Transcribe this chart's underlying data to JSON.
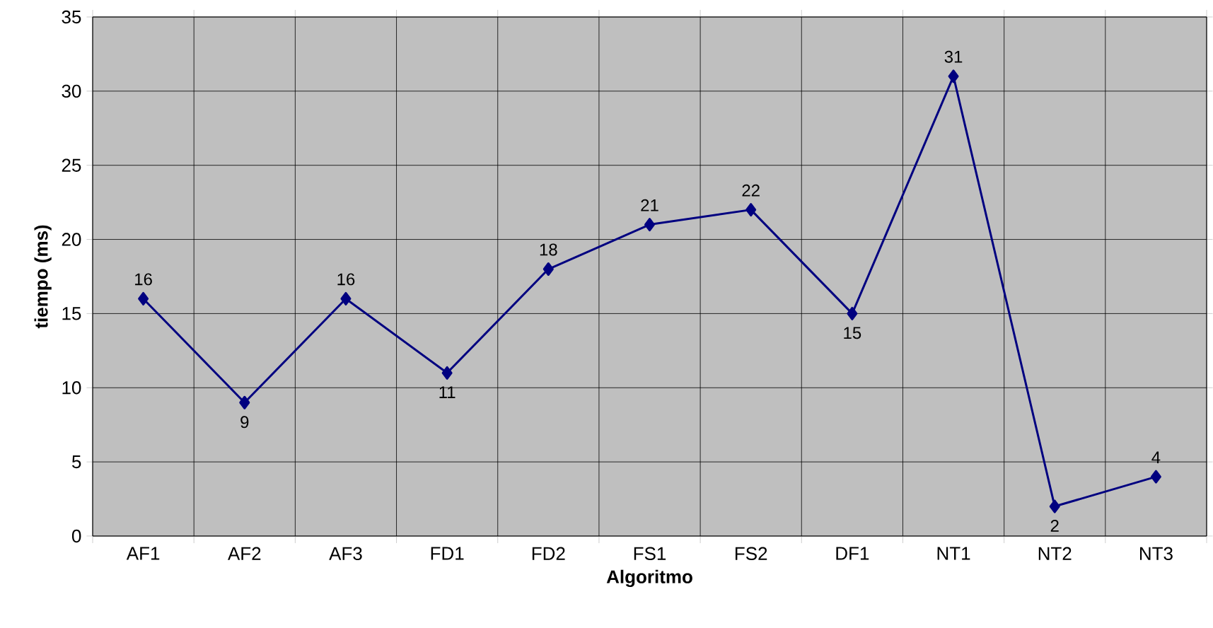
{
  "chart_data": {
    "type": "line",
    "xlabel": "Algoritmo",
    "ylabel": "tiempo (ms)",
    "categories": [
      "AF1",
      "AF2",
      "AF3",
      "FD1",
      "FD2",
      "FS1",
      "FS2",
      "DF1",
      "NT1",
      "NT2",
      "NT3"
    ],
    "series": [
      {
        "color": "#000080",
        "values": [
          16,
          9,
          16,
          11,
          18,
          21,
          22,
          15,
          31,
          2,
          4
        ]
      }
    ],
    "ylim": [
      0,
      35
    ],
    "yticks": [
      0,
      5,
      10,
      15,
      20,
      25,
      30,
      35
    ],
    "grid": true,
    "marker": "diamond",
    "line_style": "solid",
    "data_labels": true
  }
}
